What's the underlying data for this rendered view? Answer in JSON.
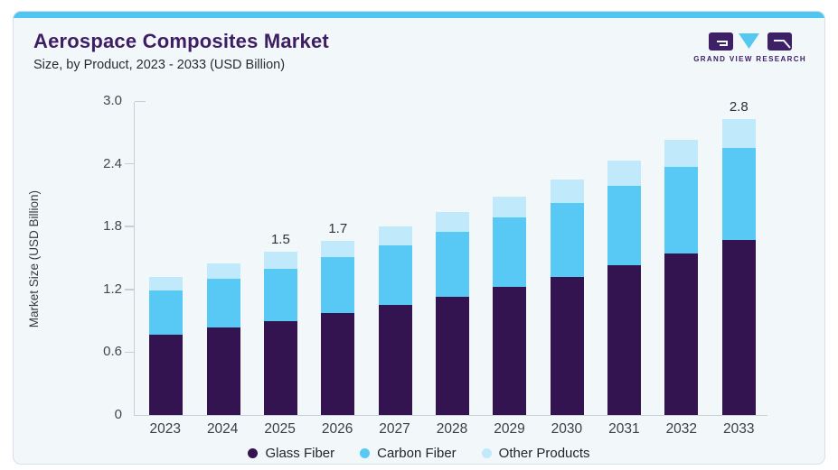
{
  "page": {
    "background": "#ffffff"
  },
  "card": {
    "background": "#f2f7fa",
    "border_color": "#d9dfe8",
    "accent_color": "#4fc6f1"
  },
  "header": {
    "title": "Aerospace Composites Market",
    "subtitle": "Size, by Product, 2023 - 2033 (USD Billion)",
    "title_color": "#3e1e63"
  },
  "logo": {
    "text": "GRAND VIEW RESEARCH",
    "purple": "#3d2066",
    "blue": "#55c8f2",
    "glyphs": [
      "g-block",
      "v-triangle",
      "r-block"
    ]
  },
  "chart_data": {
    "type": "bar",
    "stacked": true,
    "title": "Aerospace Composites Market",
    "subtitle": "Size, by Product, 2023 - 2033 (USD Billion)",
    "xlabel": "",
    "ylabel": "Market Size (USD Billion)",
    "ylim": [
      0,
      3.0
    ],
    "ytick_labels": [
      "0",
      "0.6",
      "1.2",
      "1.8",
      "2.4",
      "3.0"
    ],
    "grid": false,
    "legend_position": "bottom",
    "categories": [
      "2023",
      "2024",
      "2025",
      "2026",
      "2027",
      "2028",
      "2029",
      "2030",
      "2031",
      "2032",
      "2033"
    ],
    "series": [
      {
        "name": "Glass Fiber",
        "color": "#341351",
        "values": [
          0.77,
          0.84,
          0.9,
          0.97,
          1.05,
          1.13,
          1.22,
          1.32,
          1.43,
          1.54,
          1.67
        ]
      },
      {
        "name": "Carbon Fiber",
        "color": "#58c9f5",
        "values": [
          0.42,
          0.46,
          0.5,
          0.54,
          0.57,
          0.62,
          0.67,
          0.71,
          0.76,
          0.83,
          0.88
        ]
      },
      {
        "name": "Other Products",
        "color": "#c0e9fb",
        "values": [
          0.13,
          0.15,
          0.16,
          0.15,
          0.18,
          0.19,
          0.2,
          0.22,
          0.24,
          0.26,
          0.28
        ]
      }
    ],
    "totals_labels": {
      "2025": "1.5",
      "2026": "1.7",
      "2033": "2.8"
    }
  }
}
